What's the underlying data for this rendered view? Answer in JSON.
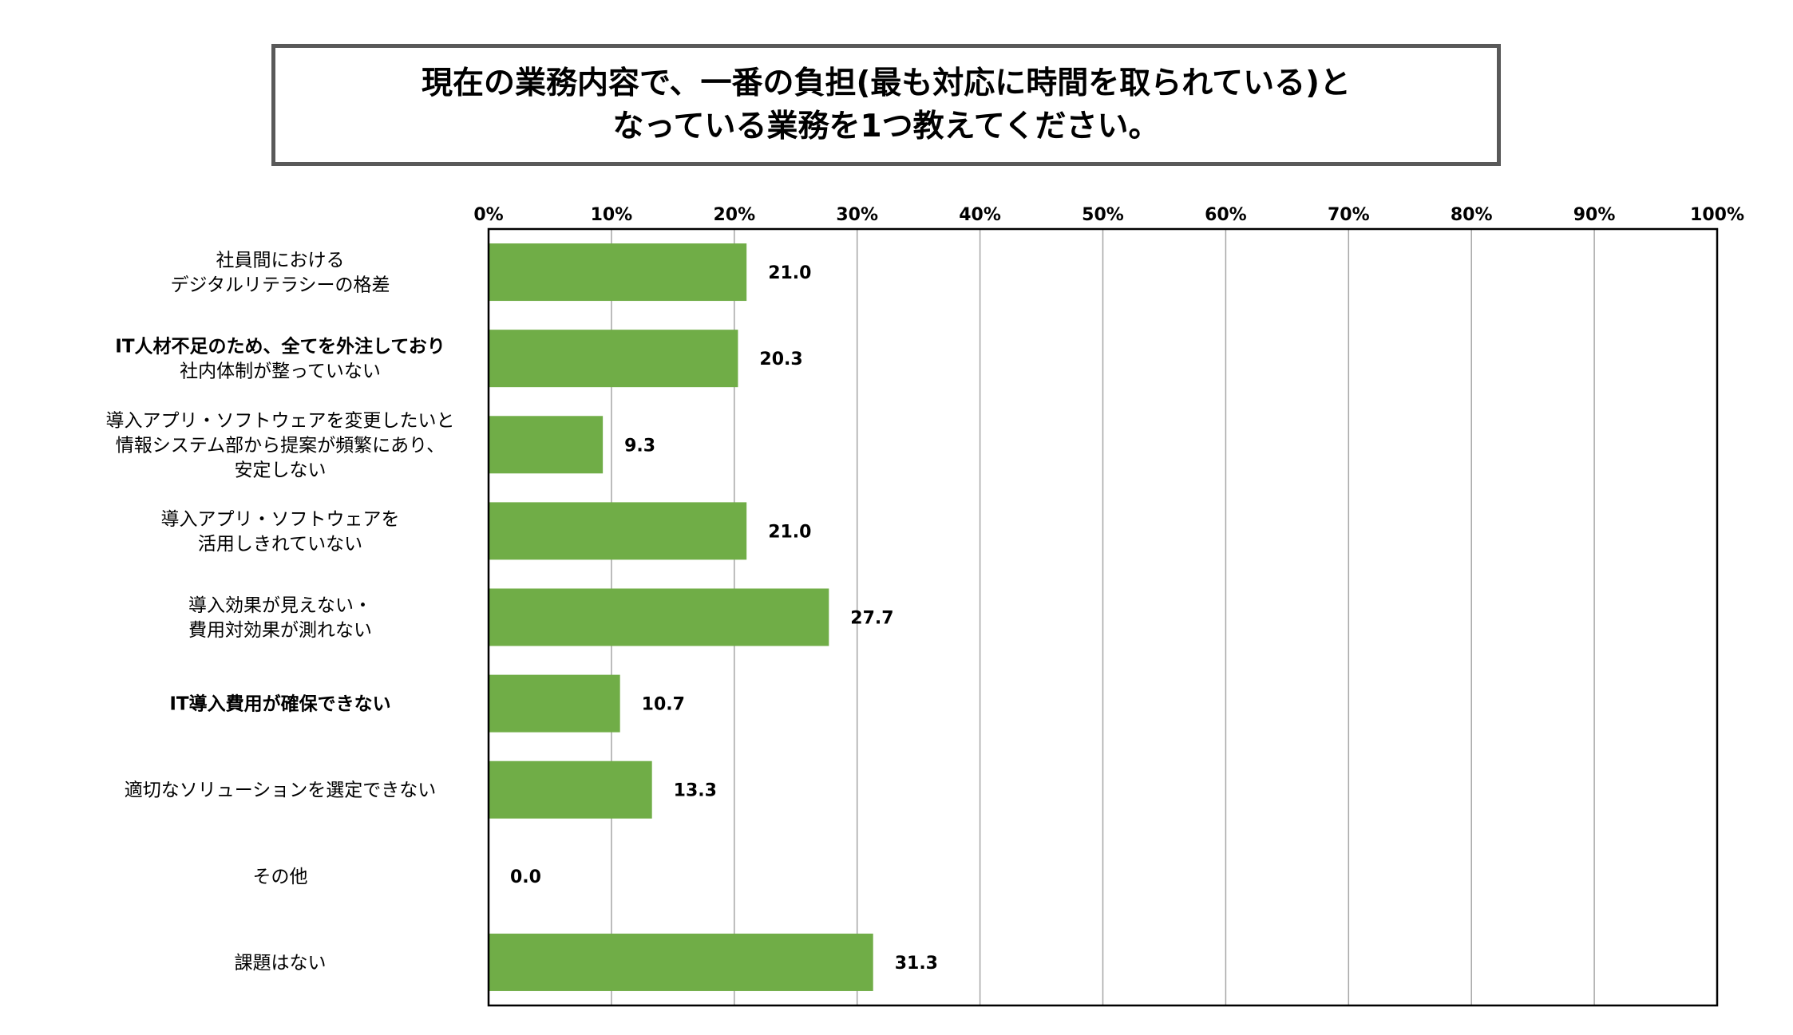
{
  "title": {
    "line1": "現在の業務内容で、一番の負担(最も対応に時間を取られている)と",
    "line2": "なっている業務を1つ教えてください。"
  },
  "colors": {
    "bar": "#70ad47",
    "grid": "#a6a6a6",
    "axis": "#000000",
    "title_border": "#595959"
  },
  "chart_data": {
    "type": "bar",
    "orientation": "horizontal",
    "title": "現在の業務内容で、一番の負担(最も対応に時間を取られている)となっている業務を1つ教えてください。",
    "xlim": [
      0,
      100
    ],
    "x_ticks": [
      "0%",
      "10%",
      "20%",
      "30%",
      "40%",
      "50%",
      "60%",
      "70%",
      "80%",
      "90%",
      "100%"
    ],
    "grid": true,
    "categories": [
      [
        "社員間における",
        "デジタルリテラシーの格差"
      ],
      [
        "IT人材不足のため、全てを外注しており",
        "社内体制が整っていない"
      ],
      [
        "導入アプリ・ソフトウェアを変更したいと",
        "情報システム部から提案が頻繁にあり、",
        "安定しない"
      ],
      [
        "導入アプリ・ソフトウェアを",
        "活用しきれていない"
      ],
      [
        "導入効果が見えない・",
        "費用対効果が測れない"
      ],
      [
        "IT導入費用が確保できない"
      ],
      [
        "適切なソリューションを選定できない"
      ],
      [
        "その他"
      ],
      [
        "課題はない"
      ]
    ],
    "values": [
      21.0,
      20.3,
      9.3,
      21.0,
      27.7,
      10.7,
      13.3,
      0.0,
      31.3
    ],
    "value_labels": [
      "21.0",
      "20.3",
      "9.3",
      "21.0",
      "27.7",
      "10.7",
      "13.3",
      "0.0",
      "31.3"
    ]
  }
}
